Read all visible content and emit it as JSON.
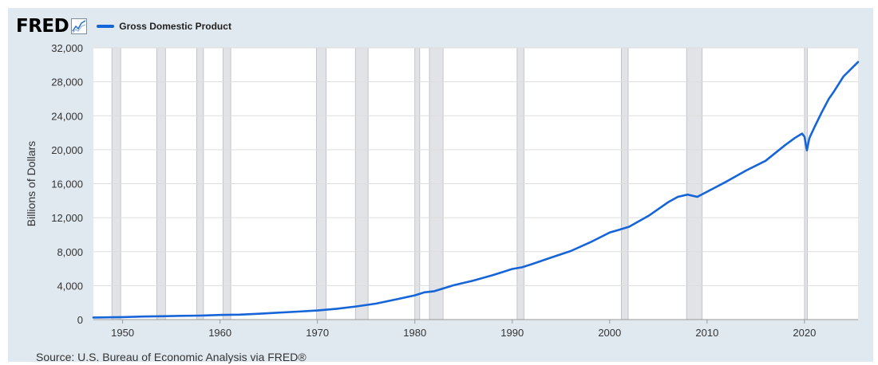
{
  "header": {
    "logo_text": "FRED",
    "logo_icon": "line-graph-icon",
    "legend_label": "Gross Domestic Product",
    "legend_color": "#1565d8"
  },
  "chart_data": {
    "type": "line",
    "title": "",
    "xlabel": "",
    "ylabel": "Billions of Dollars",
    "xlim": [
      1947,
      2025.5
    ],
    "ylim": [
      0,
      32000
    ],
    "x_ticks": [
      1950,
      1960,
      1970,
      1980,
      1990,
      2000,
      2010,
      2020
    ],
    "y_ticks": [
      0,
      4000,
      8000,
      12000,
      16000,
      20000,
      24000,
      28000,
      32000
    ],
    "y_tick_labels": [
      "0",
      "4,000",
      "8,000",
      "12,000",
      "16,000",
      "20,000",
      "24,000",
      "28,000",
      "32,000"
    ],
    "grid": true,
    "legend": "top-left",
    "recessions": [
      [
        1948.9,
        1949.8
      ],
      [
        1953.5,
        1954.4
      ],
      [
        1957.6,
        1958.3
      ],
      [
        1960.3,
        1961.1
      ],
      [
        1969.9,
        1970.9
      ],
      [
        1973.9,
        1975.2
      ],
      [
        1980.0,
        1980.5
      ],
      [
        1981.5,
        1982.9
      ],
      [
        1990.5,
        1991.2
      ],
      [
        2001.2,
        2001.9
      ],
      [
        2007.9,
        2009.5
      ],
      [
        2020.0,
        2020.3
      ]
    ],
    "series": [
      {
        "name": "Gross Domestic Product",
        "color": "#1565d8",
        "points": [
          [
            1947,
            243
          ],
          [
            1949,
            272
          ],
          [
            1950,
            293
          ],
          [
            1952,
            360
          ],
          [
            1954,
            390
          ],
          [
            1956,
            437
          ],
          [
            1958,
            467
          ],
          [
            1960,
            542
          ],
          [
            1962,
            586
          ],
          [
            1964,
            685
          ],
          [
            1966,
            815
          ],
          [
            1968,
            942
          ],
          [
            1970,
            1073
          ],
          [
            1972,
            1280
          ],
          [
            1974,
            1545
          ],
          [
            1976,
            1877
          ],
          [
            1978,
            2351
          ],
          [
            1980,
            2857
          ],
          [
            1981,
            3207
          ],
          [
            1982,
            3345
          ],
          [
            1984,
            4040
          ],
          [
            1986,
            4590
          ],
          [
            1988,
            5236
          ],
          [
            1990,
            5963
          ],
          [
            1991,
            6158
          ],
          [
            1992,
            6520
          ],
          [
            1994,
            7309
          ],
          [
            1996,
            8073
          ],
          [
            1998,
            9089
          ],
          [
            2000,
            10251
          ],
          [
            2001,
            10582
          ],
          [
            2002,
            10936
          ],
          [
            2004,
            12217
          ],
          [
            2006,
            13815
          ],
          [
            2007,
            14452
          ],
          [
            2008,
            14713
          ],
          [
            2009,
            14449
          ],
          [
            2010,
            15049
          ],
          [
            2012,
            16254
          ],
          [
            2014,
            17551
          ],
          [
            2016,
            18695
          ],
          [
            2018,
            20533
          ],
          [
            2019,
            21381
          ],
          [
            2019.75,
            21902
          ],
          [
            2020.0,
            21538
          ],
          [
            2020.25,
            19936
          ],
          [
            2020.5,
            21362
          ],
          [
            2021,
            22600
          ],
          [
            2021.75,
            24349
          ],
          [
            2022.5,
            25994
          ],
          [
            2023,
            26814
          ],
          [
            2024,
            28624
          ],
          [
            2025.5,
            30331
          ]
        ]
      }
    ]
  },
  "source": "Source: U.S. Bureau of Economic Analysis via FRED®"
}
